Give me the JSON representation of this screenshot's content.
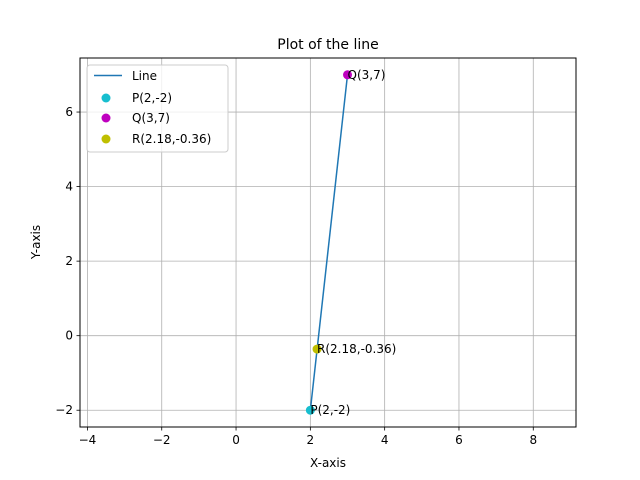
{
  "chart_data": {
    "type": "line",
    "title": "Plot of the line",
    "xlabel": "X-axis",
    "ylabel": "Y-axis",
    "xlim": [
      -4.2,
      9.15
    ],
    "ylim": [
      -2.45,
      7.45
    ],
    "grid": true,
    "legend_position": "top-left",
    "x_ticks": [
      -4,
      -2,
      0,
      2,
      4,
      6,
      8
    ],
    "x_tick_labels": [
      "−4",
      "−2",
      "0",
      "2",
      "4",
      "6",
      "8"
    ],
    "y_ticks": [
      -2,
      0,
      2,
      4,
      6
    ],
    "y_tick_labels": [
      "−2",
      "0",
      "2",
      "4",
      "6"
    ],
    "line": {
      "name": "Line",
      "color": "#1f77b4",
      "x": [
        2,
        3
      ],
      "y": [
        -2,
        7
      ]
    },
    "points": [
      {
        "name": "P(2,-2)",
        "x": 2,
        "y": -2,
        "color": "#17becf",
        "annotation": "P(2,-2)"
      },
      {
        "name": "Q(3,7)",
        "x": 3,
        "y": 7,
        "color": "#bf00bf",
        "annotation": "Q(3,7)"
      },
      {
        "name": "R(2.18,-0.36)",
        "x": 2.18,
        "y": -0.36,
        "color": "#bfbf00",
        "annotation": "R(2.18,-0.36)"
      }
    ]
  }
}
